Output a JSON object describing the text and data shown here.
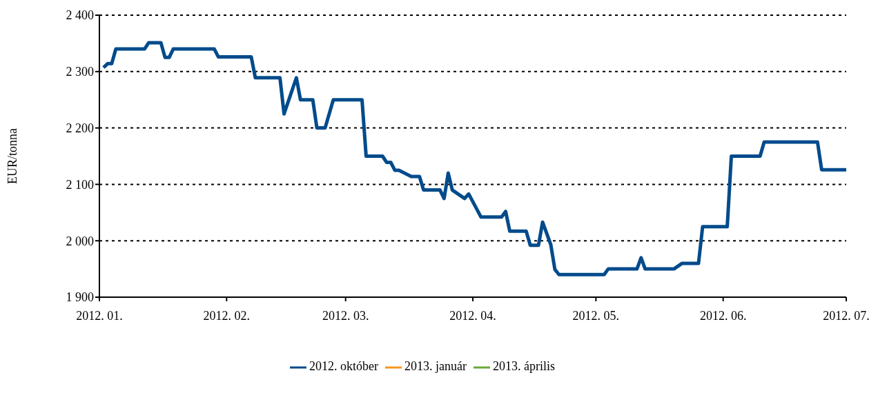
{
  "chart_data": {
    "type": "line",
    "ylabel": "EUR/tonna",
    "x": [
      "2012-01-02",
      "2012-01-03",
      "2012-01-04",
      "2012-01-05",
      "2012-01-12",
      "2012-01-13",
      "2012-01-16",
      "2012-01-17",
      "2012-01-18",
      "2012-01-19",
      "2012-01-29",
      "2012-01-30",
      "2012-02-07",
      "2012-02-08",
      "2012-02-14",
      "2012-02-15",
      "2012-02-18",
      "2012-02-19",
      "2012-02-22",
      "2012-02-23",
      "2012-02-25",
      "2012-02-27",
      "2012-03-05",
      "2012-03-06",
      "2012-03-10",
      "2012-03-11",
      "2012-03-12",
      "2012-03-13",
      "2012-03-14",
      "2012-03-17",
      "2012-03-19",
      "2012-03-20",
      "2012-03-24",
      "2012-03-25",
      "2012-03-26",
      "2012-03-27",
      "2012-03-30",
      "2012-03-31",
      "2012-04-03",
      "2012-04-08",
      "2012-04-09",
      "2012-04-10",
      "2012-04-14",
      "2012-04-15",
      "2012-04-17",
      "2012-04-18",
      "2012-04-20",
      "2012-04-21",
      "2012-04-22",
      "2012-05-03",
      "2012-05-04",
      "2012-05-11",
      "2012-05-12",
      "2012-05-13",
      "2012-05-20",
      "2012-05-22",
      "2012-05-26",
      "2012-05-27",
      "2012-06-02",
      "2012-06-03",
      "2012-06-10",
      "2012-06-11",
      "2012-06-24",
      "2012-06-25",
      "2012-07-01"
    ],
    "series": [
      {
        "name": "2012. október",
        "color": "#024b8b",
        "values": [
          2307,
          2314,
          2314,
          2340,
          2340,
          2351,
          2351,
          2325,
          2325,
          2340,
          2340,
          2326,
          2326,
          2289,
          2289,
          2225,
          2289,
          2250,
          2250,
          2200,
          2200,
          2250,
          2250,
          2150,
          2150,
          2139,
          2139,
          2125,
          2125,
          2114,
          2114,
          2090,
          2090,
          2075,
          2120,
          2090,
          2075,
          2083,
          2042,
          2042,
          2052,
          2017,
          2017,
          1992,
          1992,
          2033,
          1993,
          1949,
          1940,
          1940,
          1950,
          1950,
          1970,
          1950,
          1950,
          1960,
          1960,
          2025,
          2025,
          2150,
          2150,
          2175,
          2175,
          2126,
          2126
        ]
      },
      {
        "name": "2013. január",
        "color": "#f7941d",
        "values": [
          null,
          null,
          null,
          null,
          null,
          null,
          null,
          null,
          null,
          null,
          null,
          null,
          null,
          null,
          null,
          null,
          null,
          null,
          null,
          null,
          null,
          null,
          null,
          null,
          null,
          null,
          null,
          null,
          null,
          null,
          null,
          null,
          null,
          null,
          null,
          null,
          null,
          null,
          null,
          null,
          null,
          null,
          null,
          null,
          null,
          null,
          null,
          null,
          null,
          null,
          null,
          null,
          null,
          null,
          null,
          null,
          null,
          null,
          null,
          null,
          null,
          null,
          null,
          null,
          null
        ]
      },
      {
        "name": "2013. április",
        "color": "#6aa73b",
        "values": [
          null,
          null,
          null,
          null,
          null,
          null,
          null,
          null,
          null,
          null,
          null,
          null,
          null,
          null,
          null,
          null,
          null,
          null,
          null,
          null,
          null,
          null,
          null,
          null,
          null,
          null,
          null,
          null,
          null,
          null,
          null,
          null,
          null,
          null,
          null,
          null,
          null,
          null,
          null,
          null,
          null,
          null,
          null,
          null,
          null,
          null,
          null,
          null,
          null,
          null,
          null,
          null,
          null,
          null,
          null,
          null,
          null,
          null,
          null,
          null,
          null,
          null,
          null,
          null,
          null
        ]
      }
    ],
    "xlim": [
      "2012-01-01",
      "2012-07-01"
    ],
    "xticks": [
      {
        "value": "2012-01",
        "label": "2012. 01."
      },
      {
        "value": "2012-02",
        "label": "2012. 02."
      },
      {
        "value": "2012-03",
        "label": "2012. 03."
      },
      {
        "value": "2012-04",
        "label": "2012. 04."
      },
      {
        "value": "2012-05",
        "label": "2012. 05."
      },
      {
        "value": "2012-06",
        "label": "2012. 06."
      },
      {
        "value": "2012-07",
        "label": "2012. 07."
      }
    ],
    "ylim": [
      1900,
      2400
    ],
    "yticks": [
      {
        "value": 1900,
        "label": "1 900"
      },
      {
        "value": 2000,
        "label": "2 000"
      },
      {
        "value": 2100,
        "label": "2 100"
      },
      {
        "value": 2200,
        "label": "2 200"
      },
      {
        "value": 2300,
        "label": "2 300"
      },
      {
        "value": 2400,
        "label": "2 400"
      }
    ],
    "grid": "y",
    "legend": "bottom",
    "marker": "none",
    "line_style": "solid"
  }
}
